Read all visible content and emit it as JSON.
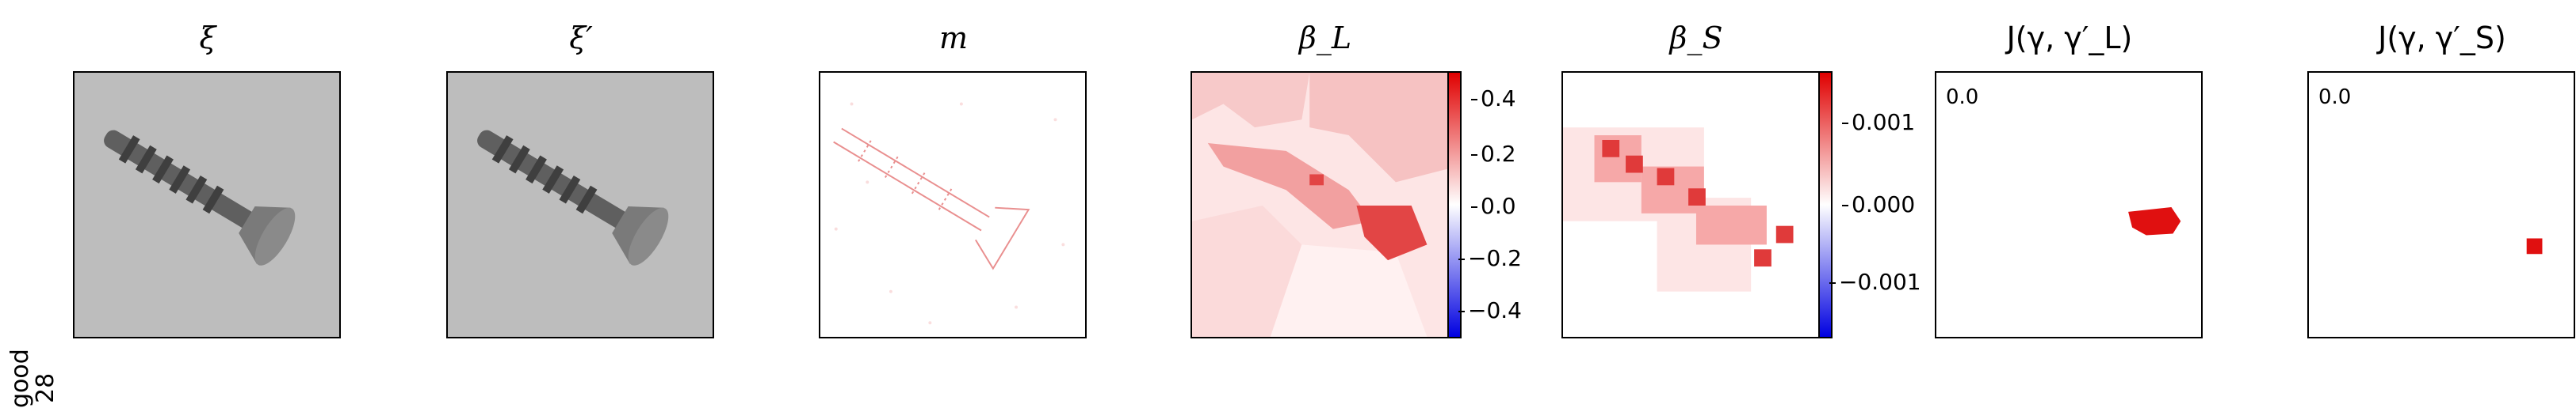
{
  "row": {
    "label_top": "good",
    "label_bottom": "28"
  },
  "panels": [
    {
      "title": "ξ"
    },
    {
      "title": "ξ′"
    },
    {
      "title": "m"
    },
    {
      "title": "β_L",
      "colorbar_ticks": [
        "0.4",
        "0.2",
        "0.0",
        "−0.2",
        "−0.4"
      ]
    },
    {
      "title": "β_S",
      "colorbar_ticks": [
        "0.001",
        "0.000",
        "−0.001"
      ]
    },
    {
      "title": "J(γ, γ′_L)",
      "value": "0.0"
    },
    {
      "title": "J(γ, γ′_S)",
      "value": "0.0"
    }
  ],
  "colors": {
    "positive": "#e00000",
    "negative": "#0000e0",
    "neutral": "#ffffff"
  }
}
